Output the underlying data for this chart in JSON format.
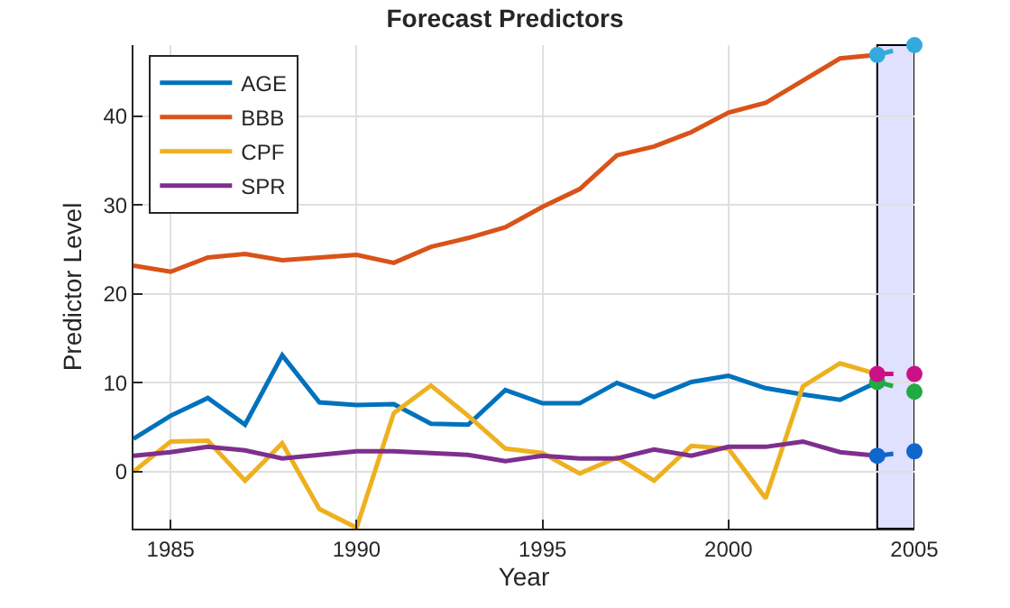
{
  "chart_data": {
    "type": "line",
    "title": "Forecast Predictors",
    "xlabel": "Year",
    "ylabel": "Predictor Level",
    "x": [
      1984,
      1985,
      1986,
      1987,
      1988,
      1989,
      1990,
      1991,
      1992,
      1993,
      1994,
      1995,
      1996,
      1997,
      1998,
      1999,
      2000,
      2001,
      2002,
      2003,
      2004,
      2005
    ],
    "series": [
      {
        "name": "AGE",
        "color": "#0072bd",
        "values": [
          3.7,
          6.3,
          8.3,
          5.3,
          13.1,
          7.8,
          7.5,
          7.6,
          5.4,
          5.3,
          9.2,
          7.7,
          7.7,
          10.0,
          8.4,
          10.1,
          10.8,
          9.4,
          8.7,
          8.1,
          10.1,
          null
        ]
      },
      {
        "name": "BBB",
        "color": "#d95319",
        "values": [
          23.2,
          22.5,
          24.1,
          24.5,
          23.8,
          24.1,
          24.4,
          23.5,
          25.3,
          26.3,
          27.5,
          29.8,
          31.8,
          35.6,
          36.6,
          38.2,
          40.4,
          41.5,
          44.0,
          46.5,
          46.9,
          null
        ]
      },
      {
        "name": "CPF",
        "color": "#edb120",
        "values": [
          0.0,
          3.4,
          3.5,
          -1.0,
          3.2,
          -4.2,
          -6.3,
          6.6,
          9.7,
          6.3,
          2.6,
          2.1,
          -0.2,
          1.6,
          -1.0,
          2.9,
          2.6,
          -3.0,
          9.6,
          12.2,
          11.0,
          null
        ]
      },
      {
        "name": "SPR",
        "color": "#7e2f8e",
        "values": [
          1.8,
          2.2,
          2.8,
          2.4,
          1.5,
          1.9,
          2.3,
          2.3,
          2.1,
          1.9,
          1.2,
          1.8,
          1.5,
          1.5,
          2.5,
          1.8,
          2.8,
          2.8,
          3.4,
          2.2,
          1.8,
          null
        ]
      },
      {
        "color": "#33aadd",
        "values": [
          null,
          null,
          null,
          null,
          null,
          null,
          null,
          null,
          null,
          null,
          null,
          null,
          null,
          null,
          null,
          null,
          null,
          null,
          null,
          null,
          46.9,
          48.0
        ],
        "marker": "circle",
        "line_style": "dashed"
      },
      {
        "color": "#22aa44",
        "values": [
          null,
          null,
          null,
          null,
          null,
          null,
          null,
          null,
          null,
          null,
          null,
          null,
          null,
          null,
          null,
          null,
          null,
          null,
          null,
          null,
          10.1,
          9.0
        ],
        "marker": "circle",
        "line_style": "dashed"
      },
      {
        "color": "#cc1188",
        "values": [
          null,
          null,
          null,
          null,
          null,
          null,
          null,
          null,
          null,
          null,
          null,
          null,
          null,
          null,
          null,
          null,
          null,
          null,
          null,
          null,
          11.0,
          11.0
        ],
        "marker": "circle",
        "line_style": "dashed"
      },
      {
        "color": "#1166cc",
        "values": [
          null,
          null,
          null,
          null,
          null,
          null,
          null,
          null,
          null,
          null,
          null,
          null,
          null,
          null,
          null,
          null,
          null,
          null,
          null,
          null,
          1.8,
          2.3
        ],
        "marker": "circle",
        "line_style": "dashed"
      }
    ],
    "bands": [
      {
        "axis": "x",
        "from": 2004,
        "to": 2005,
        "color": "#e0e0ff"
      }
    ],
    "xlim": [
      1984,
      2005
    ],
    "ylim": [
      -6.4,
      48
    ],
    "xticks": [
      1985,
      1990,
      1995,
      2000,
      2005
    ],
    "yticks": [
      0,
      10,
      20,
      30,
      40
    ],
    "grid": true,
    "legend": "top left",
    "marker": "none",
    "line_style": "solid"
  }
}
